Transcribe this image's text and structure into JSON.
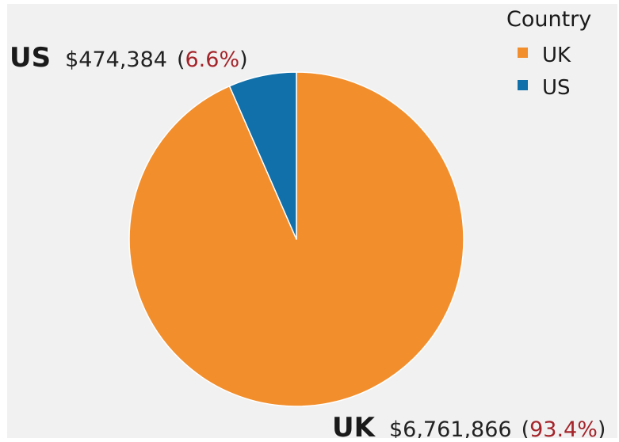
{
  "chart_data": {
    "type": "pie",
    "legend_title": "Country",
    "legend_position": "top-right",
    "categories": [
      "UK",
      "US"
    ],
    "values": [
      6761866,
      474384
    ],
    "value_labels": [
      "$6,761,866",
      "$474,384"
    ],
    "percent_labels": [
      "93.4%",
      "6.6%"
    ],
    "colors": [
      "#f28e2c",
      "#1170aa"
    ],
    "start_angle_deg": 0,
    "direction": "clockwise"
  }
}
